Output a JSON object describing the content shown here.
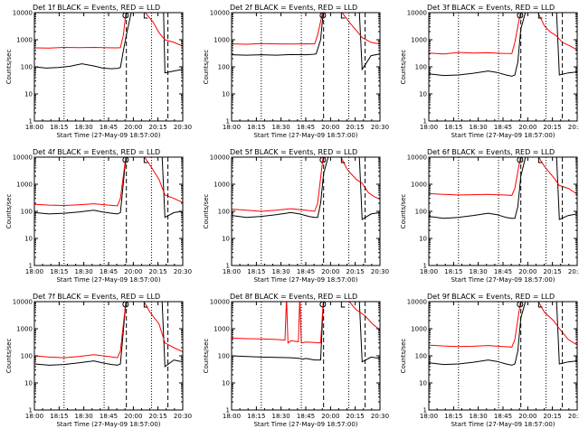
{
  "colors": {
    "events": "#000000",
    "lld": "#ff0000",
    "background": "#ffffff",
    "axes": "#000000"
  },
  "chart_data": [
    {
      "type": "line",
      "title": "Det 1f BLACK = Events, RED = LLD",
      "xlabel": "Start Time (27-May-09 18:57:00)",
      "ylabel": "Counts/sec",
      "y_scale": "log",
      "ylim": [
        1,
        10000
      ],
      "x_ticks": [
        "18:00",
        "18:15",
        "18:30",
        "18:45",
        "20:00",
        "20:15",
        "20:30"
      ],
      "y_ticks": [
        "1",
        "10",
        "100",
        "1000",
        "10000"
      ],
      "series": [
        {
          "color": "#000000",
          "x": [
            0,
            0.08,
            0.16,
            0.24,
            0.32,
            0.4,
            0.46,
            0.52,
            0.56,
            0.58,
            0.6,
            0.62,
            0.66,
            0.72,
            0.8,
            0.84,
            0.87,
            0.88,
            0.94,
            1
          ],
          "y": [
            100,
            90,
            95,
            105,
            130,
            108,
            90,
            85,
            88,
            95,
            400,
            1500,
            15000,
            15000,
            15000,
            15000,
            15000,
            60,
            70,
            80
          ]
        },
        {
          "color": "#ff0000",
          "x": [
            0,
            0.1,
            0.2,
            0.3,
            0.4,
            0.5,
            0.56,
            0.58,
            0.6,
            0.62,
            0.66,
            0.72,
            0.8,
            0.84,
            0.88,
            0.94,
            1
          ],
          "y": [
            500,
            490,
            520,
            510,
            520,
            505,
            500,
            510,
            1500,
            15000,
            15000,
            15000,
            4500,
            1800,
            1000,
            800,
            580
          ]
        }
      ]
    },
    {
      "type": "line",
      "title": "Det 2f BLACK = Events, RED = LLD",
      "xlabel": "Start Time (27-May-09 18:57:00)",
      "ylabel": "Counts/sec",
      "y_scale": "log",
      "ylim": [
        1,
        10000
      ],
      "x_ticks": [
        "18:00",
        "18:15",
        "18:30",
        "18:45",
        "20:00",
        "20:15",
        "20:30"
      ],
      "y_ticks": [
        "1",
        "10",
        "100",
        "1000",
        "10000"
      ],
      "series": [
        {
          "color": "#000000",
          "x": [
            0,
            0.1,
            0.2,
            0.3,
            0.4,
            0.5,
            0.55,
            0.57,
            0.6,
            0.62,
            0.66,
            0.72,
            0.8,
            0.84,
            0.86,
            0.88,
            0.94,
            1
          ],
          "y": [
            280,
            270,
            280,
            270,
            285,
            280,
            290,
            300,
            1000,
            15000,
            15000,
            15000,
            15000,
            15000,
            15000,
            80,
            260,
            300
          ]
        },
        {
          "color": "#ff0000",
          "x": [
            0,
            0.1,
            0.2,
            0.3,
            0.4,
            0.5,
            0.56,
            0.58,
            0.62,
            0.66,
            0.72,
            0.8,
            0.84,
            0.88,
            0.94,
            1
          ],
          "y": [
            700,
            680,
            720,
            700,
            690,
            710,
            700,
            1500,
            15000,
            15000,
            15000,
            4000,
            2200,
            1200,
            800,
            700
          ]
        }
      ]
    },
    {
      "type": "line",
      "title": "Det 3f BLACK = Events, RED = LLD",
      "xlabel": "Start Time (27-May-09 18:57:00)",
      "ylabel": "Counts/sec",
      "y_scale": "log",
      "ylim": [
        1,
        10000
      ],
      "x_ticks": [
        "18:00",
        "18:15",
        "18:30",
        "18:45",
        "20:00",
        "20:15",
        "20:30"
      ],
      "y_ticks": [
        "1",
        "10",
        "100",
        "1000",
        "10000"
      ],
      "series": [
        {
          "color": "#000000",
          "x": [
            0,
            0.1,
            0.2,
            0.3,
            0.4,
            0.46,
            0.52,
            0.56,
            0.58,
            0.6,
            0.62,
            0.66,
            0.72,
            0.8,
            0.84,
            0.86,
            0.88,
            0.94,
            1
          ],
          "y": [
            55,
            48,
            50,
            58,
            70,
            62,
            50,
            45,
            50,
            150,
            2500,
            15000,
            15000,
            15000,
            15000,
            15000,
            50,
            60,
            65
          ]
        },
        {
          "color": "#ff0000",
          "x": [
            0,
            0.1,
            0.2,
            0.3,
            0.4,
            0.5,
            0.56,
            0.58,
            0.62,
            0.66,
            0.72,
            0.78,
            0.82,
            0.86,
            0.9,
            0.95,
            1
          ],
          "y": [
            320,
            300,
            340,
            320,
            330,
            315,
            310,
            800,
            12000,
            15000,
            15000,
            3200,
            1900,
            1400,
            800,
            600,
            420
          ]
        }
      ]
    },
    {
      "type": "line",
      "title": "Det 4f BLACK = Events, RED = LLD",
      "xlabel": "Start Time (27-May-09 18:57:00)",
      "ylabel": "Counts/sec",
      "y_scale": "log",
      "ylim": [
        1,
        10000
      ],
      "x_ticks": [
        "18:00",
        "18:15",
        "18:30",
        "18:45",
        "20:00",
        "20:15",
        "20:30"
      ],
      "y_ticks": [
        "1",
        "10",
        "100",
        "1000",
        "10000"
      ],
      "series": [
        {
          "color": "#000000",
          "x": [
            0,
            0.1,
            0.2,
            0.3,
            0.4,
            0.46,
            0.52,
            0.56,
            0.58,
            0.62,
            0.66,
            0.72,
            0.8,
            0.84,
            0.86,
            0.88,
            0.94,
            1
          ],
          "y": [
            90,
            80,
            85,
            95,
            110,
            95,
            85,
            80,
            90,
            15000,
            15000,
            15000,
            15000,
            15000,
            15000,
            60,
            90,
            100
          ]
        },
        {
          "color": "#ff0000",
          "x": [
            0,
            0.1,
            0.2,
            0.3,
            0.4,
            0.5,
            0.56,
            0.58,
            0.62,
            0.66,
            0.72,
            0.78,
            0.84,
            0.88,
            0.94,
            1
          ],
          "y": [
            180,
            170,
            165,
            175,
            190,
            170,
            160,
            300,
            15000,
            15000,
            15000,
            5000,
            1500,
            400,
            300,
            210
          ]
        }
      ]
    },
    {
      "type": "line",
      "title": "Det 5f BLACK = Events, RED = LLD",
      "xlabel": "Start Time (27-May-09 18:57:00)",
      "ylabel": "Counts/sec",
      "y_scale": "log",
      "ylim": [
        1,
        10000
      ],
      "x_ticks": [
        "18:00",
        "18:15",
        "18:30",
        "18:45",
        "20:00",
        "20:15",
        "20:30"
      ],
      "y_ticks": [
        "1",
        "10",
        "100",
        "1000",
        "10000"
      ],
      "series": [
        {
          "color": "#000000",
          "x": [
            0,
            0.1,
            0.2,
            0.3,
            0.4,
            0.46,
            0.52,
            0.56,
            0.58,
            0.6,
            0.62,
            0.66,
            0.72,
            0.8,
            0.84,
            0.86,
            0.88,
            0.94,
            1
          ],
          "y": [
            70,
            60,
            65,
            75,
            90,
            80,
            65,
            60,
            60,
            200,
            2500,
            15000,
            15000,
            15000,
            15000,
            15000,
            50,
            80,
            90
          ]
        },
        {
          "color": "#ff0000",
          "x": [
            0,
            0.1,
            0.2,
            0.3,
            0.4,
            0.5,
            0.56,
            0.58,
            0.62,
            0.66,
            0.72,
            0.78,
            0.84,
            0.88,
            0.92,
            0.96,
            1
          ],
          "y": [
            120,
            110,
            100,
            110,
            125,
            110,
            100,
            200,
            15000,
            15000,
            15000,
            3500,
            1500,
            1100,
            500,
            350,
            280
          ]
        }
      ]
    },
    {
      "type": "line",
      "title": "Det 6f BLACK = Events, RED = LLD",
      "xlabel": "Start Time (27-May-09 18:57:00)",
      "ylabel": "Counts/sec",
      "y_scale": "log",
      "ylim": [
        1,
        10000
      ],
      "x_ticks": [
        "18:00",
        "18:15",
        "18:30",
        "18:45",
        "20:00",
        "20:15",
        "20:30"
      ],
      "y_ticks": [
        "1",
        "10",
        "100",
        "1000",
        "10000"
      ],
      "series": [
        {
          "color": "#000000",
          "x": [
            0,
            0.1,
            0.2,
            0.3,
            0.4,
            0.46,
            0.52,
            0.56,
            0.58,
            0.6,
            0.62,
            0.66,
            0.72,
            0.8,
            0.84,
            0.86,
            0.88,
            0.94,
            1
          ],
          "y": [
            65,
            55,
            60,
            70,
            85,
            75,
            60,
            55,
            55,
            150,
            2000,
            15000,
            15000,
            15000,
            15000,
            15000,
            50,
            70,
            80
          ]
        },
        {
          "color": "#ff0000",
          "x": [
            0,
            0.1,
            0.2,
            0.3,
            0.4,
            0.5,
            0.56,
            0.58,
            0.62,
            0.66,
            0.72,
            0.78,
            0.84,
            0.88,
            0.94,
            1
          ],
          "y": [
            450,
            420,
            400,
            410,
            420,
            400,
            390,
            700,
            12000,
            15000,
            15000,
            4500,
            1800,
            900,
            700,
            430
          ]
        }
      ]
    },
    {
      "type": "line",
      "title": "Det 7f BLACK = Events, RED = LLD",
      "xlabel": "Start Time (27-May-09 18:57:00)",
      "ylabel": "Counts/sec",
      "y_scale": "log",
      "ylim": [
        1,
        10000
      ],
      "x_ticks": [
        "18:00",
        "18:15",
        "18:30",
        "18:45",
        "20:00",
        "20:15",
        "20:30"
      ],
      "y_ticks": [
        "1",
        "10",
        "100",
        "1000",
        "10000"
      ],
      "series": [
        {
          "color": "#000000",
          "x": [
            0,
            0.1,
            0.2,
            0.3,
            0.4,
            0.46,
            0.52,
            0.56,
            0.58,
            0.62,
            0.66,
            0.72,
            0.8,
            0.84,
            0.86,
            0.88,
            0.94,
            1
          ],
          "y": [
            50,
            45,
            48,
            55,
            65,
            55,
            48,
            45,
            50,
            15000,
            15000,
            15000,
            15000,
            15000,
            15000,
            40,
            70,
            60
          ]
        },
        {
          "color": "#ff0000",
          "x": [
            0,
            0.1,
            0.2,
            0.3,
            0.4,
            0.5,
            0.56,
            0.58,
            0.62,
            0.66,
            0.72,
            0.78,
            0.84,
            0.88,
            0.94,
            1
          ],
          "y": [
            100,
            90,
            85,
            95,
            110,
            95,
            85,
            150,
            15000,
            15000,
            15000,
            4000,
            1500,
            300,
            200,
            140
          ]
        }
      ]
    },
    {
      "type": "line",
      "title": "Det 8f BLACK = Events, RED = LLD",
      "xlabel": "Start Time (27-May-09 18:57:00)",
      "ylabel": "Counts/sec",
      "y_scale": "log",
      "ylim": [
        1,
        10000
      ],
      "x_ticks": [
        "18:00",
        "18:15",
        "18:30",
        "18:45",
        "20:00",
        "20:15",
        "20:30"
      ],
      "y_ticks": [
        "1",
        "10",
        "100",
        "1000",
        "10000"
      ],
      "series": [
        {
          "color": "#000000",
          "x": [
            0,
            0.1,
            0.2,
            0.3,
            0.4,
            0.46,
            0.48,
            0.5,
            0.56,
            0.6,
            0.62,
            0.66,
            0.72,
            0.8,
            0.84,
            0.86,
            0.88,
            0.94,
            1
          ],
          "y": [
            100,
            95,
            90,
            88,
            85,
            80,
            75,
            80,
            70,
            70,
            15000,
            15000,
            15000,
            15000,
            15000,
            15000,
            60,
            90,
            80
          ]
        },
        {
          "color": "#ff0000",
          "x": [
            0,
            0.1,
            0.2,
            0.3,
            0.36,
            0.37,
            0.38,
            0.4,
            0.45,
            0.46,
            0.47,
            0.5,
            0.56,
            0.6,
            0.62,
            0.66,
            0.72,
            0.78,
            0.84,
            0.9,
            0.95,
            1
          ],
          "y": [
            450,
            430,
            420,
            400,
            380,
            15000,
            300,
            360,
            330,
            15000,
            300,
            320,
            310,
            300,
            15000,
            15000,
            15000,
            12000,
            5000,
            3000,
            1500,
            900
          ]
        }
      ]
    },
    {
      "type": "line",
      "title": "Det 9f BLACK = Events, RED = LLD",
      "xlabel": "Start Time (27-May-09 18:57:00)",
      "ylabel": "Counts/sec",
      "y_scale": "log",
      "ylim": [
        1,
        10000
      ],
      "x_ticks": [
        "18:00",
        "18:15",
        "18:30",
        "18:45",
        "20:00",
        "20:15",
        "20:30"
      ],
      "y_ticks": [
        "1",
        "10",
        "100",
        "1000",
        "10000"
      ],
      "series": [
        {
          "color": "#000000",
          "x": [
            0,
            0.1,
            0.2,
            0.3,
            0.4,
            0.46,
            0.52,
            0.56,
            0.58,
            0.6,
            0.62,
            0.66,
            0.72,
            0.8,
            0.84,
            0.86,
            0.88,
            0.94,
            1
          ],
          "y": [
            55,
            48,
            50,
            58,
            70,
            62,
            50,
            45,
            50,
            150,
            2500,
            15000,
            15000,
            15000,
            15000,
            15000,
            50,
            60,
            65
          ]
        },
        {
          "color": "#ff0000",
          "x": [
            0,
            0.1,
            0.2,
            0.3,
            0.4,
            0.5,
            0.56,
            0.58,
            0.62,
            0.66,
            0.72,
            0.78,
            0.84,
            0.88,
            0.94,
            1
          ],
          "y": [
            250,
            230,
            220,
            225,
            240,
            220,
            210,
            400,
            12000,
            15000,
            15000,
            4000,
            2000,
            1000,
            400,
            250
          ]
        }
      ]
    }
  ]
}
